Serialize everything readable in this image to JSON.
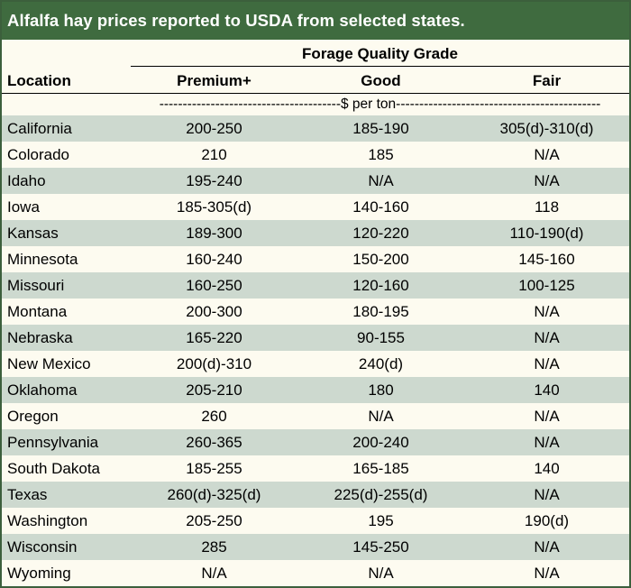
{
  "title": "Alfalfa hay prices reported to USDA from selected states.",
  "header": {
    "group": "Forage Quality Grade",
    "location": "Location",
    "columns": [
      "Premium+",
      "Good",
      "Fair"
    ]
  },
  "units": "---------------------------------------$ per ton--------------------------------------------",
  "rows": [
    {
      "location": "California",
      "premium": "200-250",
      "good": "185-190",
      "fair": "305(d)-310(d)"
    },
    {
      "location": "Colorado",
      "premium": "210",
      "good": "185",
      "fair": "N/A"
    },
    {
      "location": "Idaho",
      "premium": "195-240",
      "good": "N/A",
      "fair": "N/A"
    },
    {
      "location": "Iowa",
      "premium": "185-305(d)",
      "good": "140-160",
      "fair": "118"
    },
    {
      "location": "Kansas",
      "premium": "189-300",
      "good": "120-220",
      "fair": "110-190(d)"
    },
    {
      "location": "Minnesota",
      "premium": "160-240",
      "good": "150-200",
      "fair": "145-160"
    },
    {
      "location": "Missouri",
      "premium": "160-250",
      "good": "120-160",
      "fair": "100-125"
    },
    {
      "location": "Montana",
      "premium": "200-300",
      "good": "180-195",
      "fair": "N/A"
    },
    {
      "location": "Nebraska",
      "premium": "165-220",
      "good": "90-155",
      "fair": "N/A"
    },
    {
      "location": "New Mexico",
      "premium": "200(d)-310",
      "good": "240(d)",
      "fair": "N/A"
    },
    {
      "location": "Oklahoma",
      "premium": "205-210",
      "good": "180",
      "fair": "140"
    },
    {
      "location": "Oregon",
      "premium": "260",
      "good": "N/A",
      "fair": "N/A"
    },
    {
      "location": "Pennsylvania",
      "premium": "260-365",
      "good": "200-240",
      "fair": "N/A"
    },
    {
      "location": "South Dakota",
      "premium": "185-255",
      "good": "165-185",
      "fair": "140"
    },
    {
      "location": "Texas",
      "premium": "260(d)-325(d)",
      "good": "225(d)-255(d)",
      "fair": "N/A"
    },
    {
      "location": "Washington",
      "premium": "205-250",
      "good": "195",
      "fair": "190(d)"
    },
    {
      "location": "Wisconsin",
      "premium": "285",
      "good": "145-250",
      "fair": "N/A"
    },
    {
      "location": "Wyoming",
      "premium": "N/A",
      "good": "N/A",
      "fair": "N/A"
    }
  ],
  "colors": {
    "title_bg": "#3f6b3f",
    "row_shade": "#cdd9cf",
    "row_plain": "#fdfbf0"
  }
}
